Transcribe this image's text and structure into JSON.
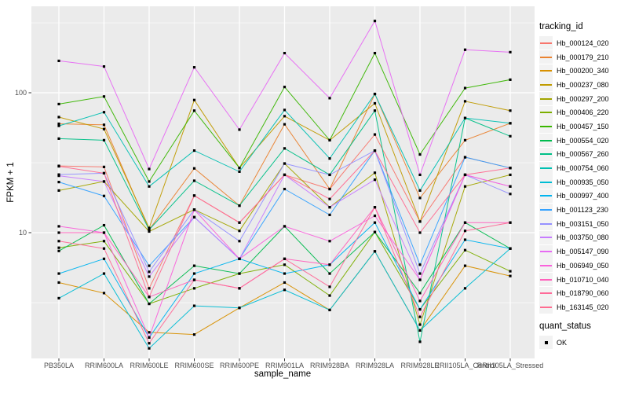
{
  "figure": {
    "x_axis_title": "sample_name",
    "y_axis_title": "FPKM + 1",
    "panel_bg": "#EBEBEB",
    "grid_color": "#FFFFFF",
    "tick_text_color": "#4D4D4D",
    "point_color": "#000000",
    "legend": {
      "tracking_title": "tracking_id",
      "quant_title": "quant_status",
      "quant_label": "OK",
      "key_fill": "#F2F2F2"
    }
  },
  "chart_data": {
    "type": "line",
    "title": "",
    "xlabel": "sample_name",
    "ylabel": "FPKM + 1",
    "y_scale": "log10",
    "y_ticks": [
      10,
      100
    ],
    "y_minor_ticks": [
      3.16,
      31.6,
      316
    ],
    "ylim": [
      1.26,
      415
    ],
    "grid": true,
    "legend_position": "right",
    "legend_title": "tracking_id",
    "point_marker": "black-square",
    "quant_status": {
      "title": "quant_status",
      "entries": [
        "OK"
      ]
    },
    "categories": [
      "PB350LA",
      "RRIM600LA",
      "RRIM600LE",
      "RRIM600SE",
      "RRIM600PE",
      "RRIM901LA",
      "RRIM928BA",
      "RRIM928LA",
      "RRIM928LE",
      "RRII105LA_Control",
      "RRII105LA_Stressed"
    ],
    "series": [
      {
        "name": "Hb_000124_020",
        "color": "#F8766D",
        "values": [
          30,
          29.5,
          4.0,
          18.4,
          11.8,
          25.9,
          20.5,
          50.3,
          12.0,
          34.6,
          29
        ]
      },
      {
        "name": "Hb_000179_210",
        "color": "#EA8331",
        "values": [
          60,
          59,
          10.5,
          28.8,
          15.6,
          59.5,
          20.5,
          98,
          17.7,
          45.8,
          60.5
        ]
      },
      {
        "name": "Hb_000200_340",
        "color": "#D89000",
        "values": [
          4.4,
          3.7,
          1.94,
          1.87,
          2.9,
          4.4,
          2.8,
          7.35,
          2.0,
          5.8,
          4.9
        ]
      },
      {
        "name": "Hb_000237_080",
        "color": "#C09B00",
        "values": [
          67,
          55,
          10.8,
          88.7,
          29,
          68,
          45.8,
          84,
          12,
          86.9,
          74.5
        ]
      },
      {
        "name": "Hb_000297_200",
        "color": "#A3A500",
        "values": [
          20,
          23.2,
          10.2,
          14.6,
          10.3,
          31.2,
          15.2,
          26.8,
          2.2,
          21.4,
          25.9
        ]
      },
      {
        "name": "Hb_000406_220",
        "color": "#7CAE00",
        "values": [
          7.8,
          8.7,
          3.1,
          4.0,
          5.1,
          5.9,
          3.55,
          10.1,
          2.83,
          7.5,
          5.3
        ]
      },
      {
        "name": "Hb_000457_150",
        "color": "#39B600",
        "values": [
          83,
          94,
          23.2,
          74.5,
          29,
          110,
          45.8,
          192,
          36.2,
          108,
          124
        ]
      },
      {
        "name": "Hb_000554_020",
        "color": "#00BB4E",
        "values": [
          7.4,
          11.3,
          3.1,
          5.8,
          5.1,
          11.1,
          5.1,
          10.1,
          3.7,
          11.8,
          7.7
        ]
      },
      {
        "name": "Hb_000567_260",
        "color": "#00C087",
        "values": [
          47,
          45.8,
          10.5,
          23.5,
          15.6,
          40,
          25.9,
          74.5,
          1.66,
          66,
          48.9
        ]
      },
      {
        "name": "Hb_000754_060",
        "color": "#00C0B2",
        "values": [
          58,
          72.6,
          21.4,
          38.6,
          27.3,
          75.3,
          33.9,
          98,
          20,
          66,
          60.5
        ]
      },
      {
        "name": "Hb_000935_050",
        "color": "#00BDD4",
        "values": [
          3.4,
          5.1,
          1.49,
          3.0,
          2.9,
          3.9,
          2.8,
          7.35,
          2.0,
          4.0,
          7.7
        ]
      },
      {
        "name": "Hb_000997_400",
        "color": "#00B4EF",
        "values": [
          5.1,
          6.5,
          1.78,
          5.1,
          6.5,
          5.1,
          5.9,
          11.8,
          2.83,
          8.9,
          7.7
        ]
      },
      {
        "name": "Hb_001123_230",
        "color": "#35A2FF",
        "values": [
          23,
          18.3,
          5.8,
          12.9,
          6.5,
          20.5,
          13.4,
          38.6,
          5.9,
          34.6,
          29
        ]
      },
      {
        "name": "Hb_003151_050",
        "color": "#9590FF",
        "values": [
          26,
          26.6,
          5.25,
          14.6,
          8.7,
          31.2,
          25.9,
          38.6,
          5.1,
          25.9,
          18.9
        ]
      },
      {
        "name": "Hb_003750_080",
        "color": "#C77CFF",
        "values": [
          25.5,
          23.2,
          4.85,
          12.9,
          6.5,
          25.9,
          15.2,
          23.9,
          4.6,
          25.9,
          21.4
        ]
      },
      {
        "name": "Hb_005147_090",
        "color": "#E76BF3",
        "values": [
          169,
          154,
          28.5,
          152,
          54.5,
          192,
          91.5,
          326,
          25.9,
          203,
          195
        ]
      },
      {
        "name": "Hb_006949_050",
        "color": "#FA62DB",
        "values": [
          11.1,
          10,
          1.78,
          14.6,
          6.5,
          11.1,
          8.7,
          13.2,
          4.6,
          25.9,
          21.4
        ]
      },
      {
        "name": "Hb_010710_040",
        "color": "#FF62BC",
        "values": [
          10,
          10,
          3.47,
          4.6,
          4.0,
          6.5,
          5.9,
          15.2,
          3.25,
          11.8,
          11.8
        ]
      },
      {
        "name": "Hb_018790_060",
        "color": "#FF6A98",
        "values": [
          8.7,
          7.7,
          1.62,
          4.6,
          4.0,
          6.5,
          4.1,
          15.2,
          2.5,
          10.3,
          11.8
        ]
      },
      {
        "name": "Hb_163145_020",
        "color": "#FF6C91",
        "values": [
          29.8,
          26.6,
          3.47,
          18.4,
          11.8,
          25.9,
          17.4,
          38.6,
          10,
          25.9,
          29
        ]
      }
    ]
  }
}
